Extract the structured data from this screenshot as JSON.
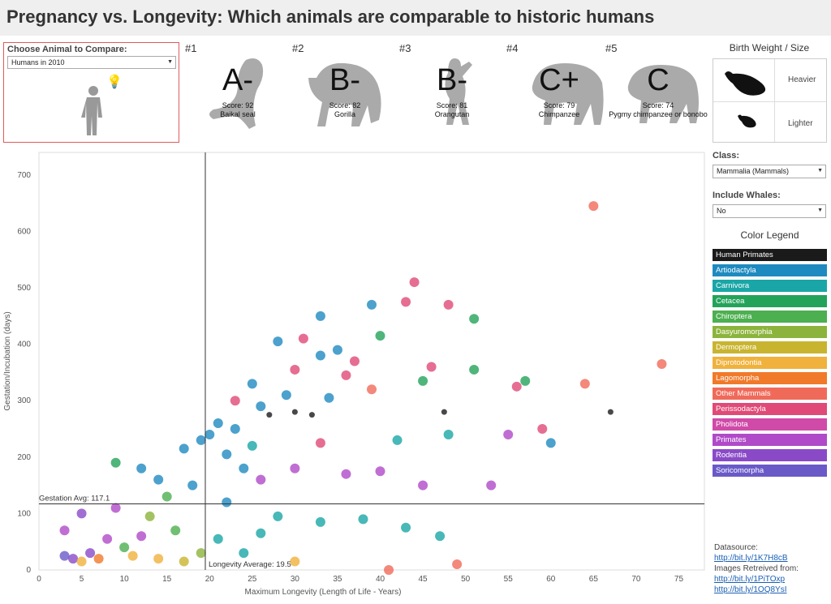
{
  "header": {
    "title": "Pregnancy vs. Longevity: Which animals are comparable to historic humans"
  },
  "compare": {
    "label": "Choose Animal to Compare:",
    "selected": "Humans in 2010"
  },
  "rankings": [
    {
      "rank": "#1",
      "grade": "A-",
      "score": "Score: 92",
      "name": "Baikal seal"
    },
    {
      "rank": "#2",
      "grade": "B-",
      "score": "Score: 82",
      "name": "Gorilla"
    },
    {
      "rank": "#3",
      "grade": "B-",
      "score": "Score: 81",
      "name": "Orangutan"
    },
    {
      "rank": "#4",
      "grade": "C+",
      "score": "Score: 79",
      "name": "Chimpanzee"
    },
    {
      "rank": "#5",
      "grade": "C",
      "score": "Score: 74",
      "name": "Pygmy chimpanzee or bonobo"
    }
  ],
  "birth_weight": {
    "title": "Birth Weight / Size",
    "heavier": "Heavier",
    "lighter": "Lighter"
  },
  "filters": {
    "class_label": "Class:",
    "class_value": "Mammalia (Mammals)",
    "whales_label": "Include Whales:",
    "whales_value": "No"
  },
  "legend": {
    "title": "Color Legend",
    "items": [
      {
        "label": "Human Primates",
        "color": "#1a1a1a"
      },
      {
        "label": "Artiodactyla",
        "color": "#1f8ac0"
      },
      {
        "label": "Carnivora",
        "color": "#1aa6a6"
      },
      {
        "label": "Cetacea",
        "color": "#23a35a"
      },
      {
        "label": "Chiroptera",
        "color": "#4caf50"
      },
      {
        "label": "Dasyuromorphia",
        "color": "#8cb43c"
      },
      {
        "label": "Dermoptera",
        "color": "#c9b430"
      },
      {
        "label": "Diprotodontia",
        "color": "#f0b23c"
      },
      {
        "label": "Lagomorpha",
        "color": "#f07a2a"
      },
      {
        "label": "Other Mammals",
        "color": "#f06a5a"
      },
      {
        "label": "Perissodactyla",
        "color": "#e04a78"
      },
      {
        "label": "Pholidota",
        "color": "#d04aa8"
      },
      {
        "label": "Primates",
        "color": "#b04ac8"
      },
      {
        "label": "Rodentia",
        "color": "#8a4ac8"
      },
      {
        "label": "Soricomorpha",
        "color": "#6a5ac8"
      }
    ]
  },
  "datasource": {
    "label": "Datasource:",
    "link1": "http://bit.ly/1K7H8cB",
    "images_label": "Images Retreived from:",
    "link2": "http://bit.ly/1PiTOxp",
    "link3": "http://bit.ly/1OQ8YsI"
  },
  "chart_data": {
    "type": "scatter",
    "xlabel": "Maximum Longevity (Length of Life - Years)",
    "ylabel": "Gestation/Incubation (days)",
    "xlim": [
      0,
      78
    ],
    "ylim": [
      0,
      740
    ],
    "xticks": [
      0,
      5,
      10,
      15,
      20,
      25,
      30,
      35,
      40,
      45,
      50,
      55,
      60,
      65,
      70,
      75
    ],
    "yticks": [
      0,
      100,
      200,
      300,
      400,
      500,
      600,
      700
    ],
    "ref_lines": {
      "longevity_avg": 19.5,
      "longevity_label": "Longevity Average: 19.5",
      "gestation_avg": 117.1,
      "gestation_label": "Gestation Avg: 117.1"
    },
    "points": [
      {
        "x": 65,
        "y": 645,
        "series": "Other Mammals"
      },
      {
        "x": 44,
        "y": 510,
        "series": "Perissodactyla"
      },
      {
        "x": 43,
        "y": 475,
        "series": "Perissodactyla"
      },
      {
        "x": 48,
        "y": 470,
        "series": "Perissodactyla"
      },
      {
        "x": 39,
        "y": 470,
        "series": "Artiodactyla"
      },
      {
        "x": 33,
        "y": 450,
        "series": "Artiodactyla"
      },
      {
        "x": 51,
        "y": 445,
        "series": "Cetacea"
      },
      {
        "x": 40,
        "y": 415,
        "series": "Cetacea"
      },
      {
        "x": 31,
        "y": 410,
        "series": "Perissodactyla"
      },
      {
        "x": 28,
        "y": 405,
        "series": "Artiodactyla"
      },
      {
        "x": 35,
        "y": 390,
        "series": "Artiodactyla"
      },
      {
        "x": 37,
        "y": 370,
        "series": "Perissodactyla"
      },
      {
        "x": 46,
        "y": 360,
        "series": "Perissodactyla"
      },
      {
        "x": 51,
        "y": 355,
        "series": "Cetacea"
      },
      {
        "x": 73,
        "y": 365,
        "series": "Other Mammals"
      },
      {
        "x": 64,
        "y": 330,
        "series": "Other Mammals"
      },
      {
        "x": 56,
        "y": 325,
        "series": "Perissodactyla"
      },
      {
        "x": 57,
        "y": 335,
        "series": "Cetacea"
      },
      {
        "x": 45,
        "y": 335,
        "series": "Cetacea"
      },
      {
        "x": 39,
        "y": 320,
        "series": "Other Mammals"
      },
      {
        "x": 34,
        "y": 305,
        "series": "Artiodactyla"
      },
      {
        "x": 29,
        "y": 310,
        "series": "Artiodactyla"
      },
      {
        "x": 25,
        "y": 330,
        "series": "Artiodactyla"
      },
      {
        "x": 27,
        "y": 275,
        "series": "Human Primates"
      },
      {
        "x": 30,
        "y": 280,
        "series": "Human Primates"
      },
      {
        "x": 32,
        "y": 275,
        "series": "Human Primates"
      },
      {
        "x": 47.5,
        "y": 280,
        "series": "Human Primates"
      },
      {
        "x": 67,
        "y": 280,
        "series": "Human Primates"
      },
      {
        "x": 59,
        "y": 250,
        "series": "Perissodactyla"
      },
      {
        "x": 60,
        "y": 225,
        "series": "Artiodactyla"
      },
      {
        "x": 55,
        "y": 240,
        "series": "Primates"
      },
      {
        "x": 48,
        "y": 240,
        "series": "Carnivora"
      },
      {
        "x": 42,
        "y": 230,
        "series": "Carnivora"
      },
      {
        "x": 33,
        "y": 225,
        "series": "Perissodactyla"
      },
      {
        "x": 23,
        "y": 250,
        "series": "Artiodactyla"
      },
      {
        "x": 21,
        "y": 260,
        "series": "Artiodactyla"
      },
      {
        "x": 19,
        "y": 230,
        "series": "Artiodactyla"
      },
      {
        "x": 17,
        "y": 215,
        "series": "Artiodactyla"
      },
      {
        "x": 22,
        "y": 205,
        "series": "Artiodactyla"
      },
      {
        "x": 25,
        "y": 220,
        "series": "Carnivora"
      },
      {
        "x": 30,
        "y": 180,
        "series": "Primates"
      },
      {
        "x": 36,
        "y": 170,
        "series": "Primates"
      },
      {
        "x": 40,
        "y": 175,
        "series": "Primates"
      },
      {
        "x": 26,
        "y": 160,
        "series": "Primates"
      },
      {
        "x": 45,
        "y": 150,
        "series": "Primates"
      },
      {
        "x": 53,
        "y": 150,
        "series": "Primates"
      },
      {
        "x": 12,
        "y": 180,
        "series": "Artiodactyla"
      },
      {
        "x": 14,
        "y": 160,
        "series": "Artiodactyla"
      },
      {
        "x": 9,
        "y": 190,
        "series": "Cetacea"
      },
      {
        "x": 18,
        "y": 150,
        "series": "Artiodactyla"
      },
      {
        "x": 22,
        "y": 120,
        "series": "Artiodactyla"
      },
      {
        "x": 28,
        "y": 95,
        "series": "Carnivora"
      },
      {
        "x": 33,
        "y": 85,
        "series": "Carnivora"
      },
      {
        "x": 38,
        "y": 90,
        "series": "Carnivora"
      },
      {
        "x": 43,
        "y": 75,
        "series": "Carnivora"
      },
      {
        "x": 47,
        "y": 60,
        "series": "Carnivora"
      },
      {
        "x": 26,
        "y": 65,
        "series": "Carnivora"
      },
      {
        "x": 21,
        "y": 55,
        "series": "Carnivora"
      },
      {
        "x": 16,
        "y": 70,
        "series": "Chiroptera"
      },
      {
        "x": 12,
        "y": 60,
        "series": "Primates"
      },
      {
        "x": 10,
        "y": 40,
        "series": "Chiroptera"
      },
      {
        "x": 8,
        "y": 55,
        "series": "Primates"
      },
      {
        "x": 6,
        "y": 30,
        "series": "Rodentia"
      },
      {
        "x": 4,
        "y": 20,
        "series": "Rodentia"
      },
      {
        "x": 3,
        "y": 25,
        "series": "Soricomorpha"
      },
      {
        "x": 5,
        "y": 15,
        "series": "Diprotodontia"
      },
      {
        "x": 7,
        "y": 20,
        "series": "Lagomorpha"
      },
      {
        "x": 11,
        "y": 25,
        "series": "Diprotodontia"
      },
      {
        "x": 14,
        "y": 20,
        "series": "Diprotodontia"
      },
      {
        "x": 17,
        "y": 15,
        "series": "Dermoptera"
      },
      {
        "x": 19,
        "y": 30,
        "series": "Dasyuromorphia"
      },
      {
        "x": 30,
        "y": 15,
        "series": "Diprotodontia"
      },
      {
        "x": 41,
        "y": 0,
        "series": "Other Mammals"
      },
      {
        "x": 49,
        "y": 10,
        "series": "Other Mammals"
      },
      {
        "x": 24,
        "y": 30,
        "series": "Carnivora"
      },
      {
        "x": 9,
        "y": 110,
        "series": "Primates"
      },
      {
        "x": 3,
        "y": 70,
        "series": "Primates"
      },
      {
        "x": 5,
        "y": 100,
        "series": "Rodentia"
      },
      {
        "x": 13,
        "y": 95,
        "series": "Dasyuromorphia"
      },
      {
        "x": 15,
        "y": 130,
        "series": "Chiroptera"
      },
      {
        "x": 24,
        "y": 180,
        "series": "Artiodactyla"
      },
      {
        "x": 20,
        "y": 240,
        "series": "Artiodactyla"
      },
      {
        "x": 26,
        "y": 290,
        "series": "Artiodactyla"
      },
      {
        "x": 23,
        "y": 300,
        "series": "Perissodactyla"
      },
      {
        "x": 30,
        "y": 355,
        "series": "Perissodactyla"
      },
      {
        "x": 33,
        "y": 380,
        "series": "Artiodactyla"
      },
      {
        "x": 36,
        "y": 345,
        "series": "Perissodactyla"
      }
    ]
  }
}
